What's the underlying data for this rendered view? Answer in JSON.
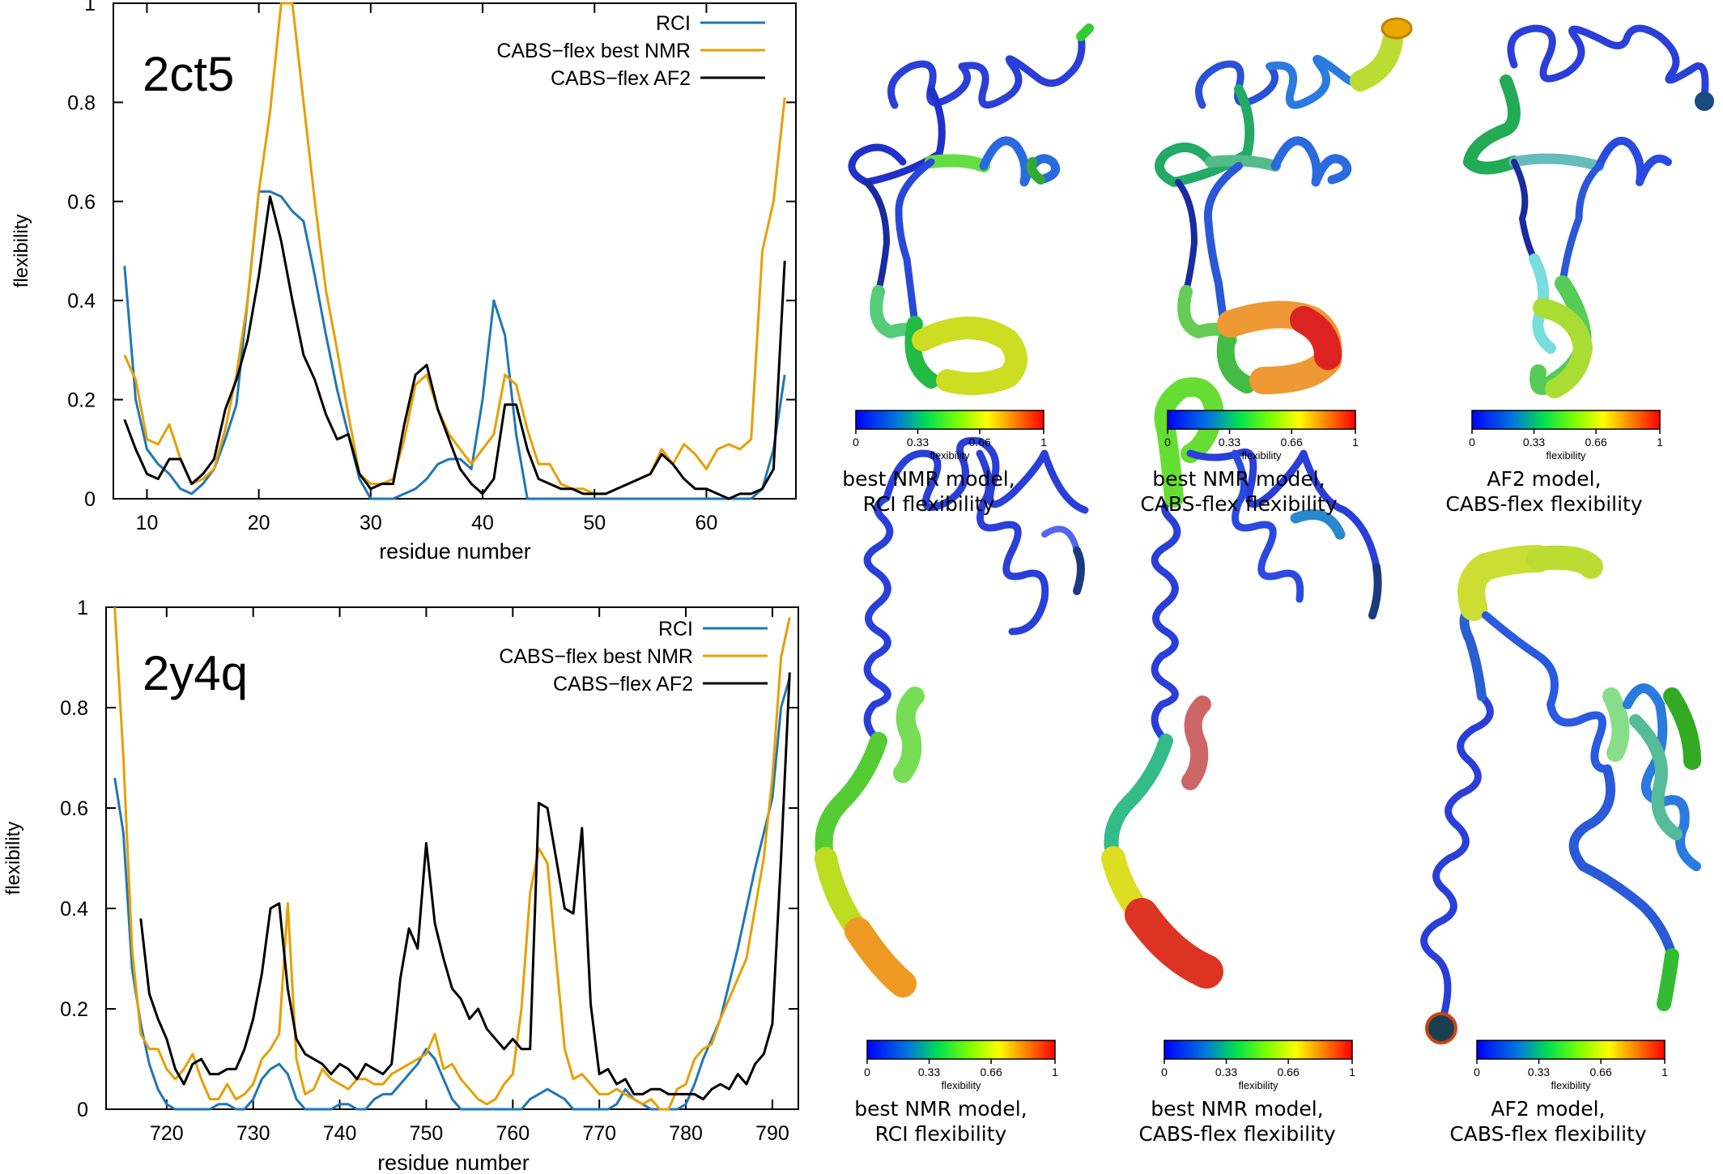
{
  "chart_data": [
    {
      "type": "line",
      "title": "",
      "label": "2ct5",
      "xlabel": "residue number",
      "ylabel": "flexibility",
      "xlim": [
        7,
        68
      ],
      "ylim": [
        0,
        1
      ],
      "xticks": [
        10,
        20,
        30,
        40,
        50,
        60
      ],
      "yticks": [
        0,
        0.2,
        0.4,
        0.6,
        0.8,
        1
      ],
      "ytick_labels": [
        "0",
        "0.2",
        "0.4",
        "0.6",
        "0.8",
        "1"
      ],
      "legend_position": "top-right",
      "series": [
        {
          "name": "RCI",
          "color": "#1f77b4",
          "x": [
            8,
            9,
            10,
            11,
            12,
            13,
            14,
            15,
            16,
            17,
            18,
            19,
            20,
            21,
            22,
            23,
            24,
            25,
            26,
            27,
            28,
            29,
            30,
            31,
            32,
            33,
            34,
            35,
            36,
            37,
            38,
            39,
            40,
            41,
            42,
            43,
            44,
            45,
            46,
            47,
            48,
            49,
            50,
            51,
            52,
            53,
            54,
            55,
            56,
            57,
            58,
            59,
            60,
            61,
            62,
            63,
            64,
            65,
            66,
            67
          ],
          "y": [
            0.47,
            0.2,
            0.1,
            0.07,
            0.05,
            0.02,
            0.01,
            0.03,
            0.06,
            0.12,
            0.19,
            0.4,
            0.62,
            0.62,
            0.61,
            0.58,
            0.56,
            0.45,
            0.33,
            0.22,
            0.13,
            0.04,
            0.0,
            0.0,
            0.0,
            0.01,
            0.02,
            0.04,
            0.07,
            0.08,
            0.08,
            0.06,
            0.2,
            0.4,
            0.33,
            0.13,
            0.0,
            0.0,
            0.0,
            0.0,
            0.0,
            0.0,
            0.0,
            0.0,
            0.0,
            0.0,
            0.0,
            0.0,
            0.0,
            0.0,
            0.0,
            0.0,
            0.0,
            0.0,
            0.0,
            0.0,
            0.0,
            0.02,
            0.1,
            0.25
          ]
        },
        {
          "name": "CABS−flex best NMR",
          "color": "#e69f00",
          "x": [
            8,
            9,
            10,
            11,
            12,
            13,
            14,
            15,
            16,
            17,
            18,
            19,
            20,
            21,
            22,
            23,
            24,
            25,
            26,
            27,
            28,
            29,
            30,
            31,
            32,
            33,
            34,
            35,
            36,
            37,
            38,
            39,
            40,
            41,
            42,
            43,
            44,
            45,
            46,
            47,
            48,
            49,
            50,
            51,
            52,
            53,
            54,
            55,
            56,
            57,
            58,
            59,
            60,
            61,
            62,
            63,
            64,
            65,
            66,
            67
          ],
          "y": [
            0.29,
            0.24,
            0.12,
            0.11,
            0.15,
            0.08,
            0.03,
            0.04,
            0.06,
            0.14,
            0.25,
            0.4,
            0.62,
            0.78,
            1.0,
            1.0,
            0.8,
            0.6,
            0.42,
            0.3,
            0.17,
            0.05,
            0.03,
            0.03,
            0.04,
            0.12,
            0.23,
            0.25,
            0.18,
            0.13,
            0.1,
            0.07,
            0.1,
            0.13,
            0.25,
            0.23,
            0.14,
            0.07,
            0.07,
            0.03,
            0.02,
            0.02,
            0.01,
            0.01,
            0.02,
            0.03,
            0.04,
            0.05,
            0.1,
            0.07,
            0.11,
            0.09,
            0.06,
            0.1,
            0.11,
            0.1,
            0.12,
            0.5,
            0.6,
            0.81
          ]
        },
        {
          "name": "CABS−flex AF2",
          "color": "#000000",
          "x": [
            8,
            9,
            10,
            11,
            12,
            13,
            14,
            15,
            16,
            17,
            18,
            19,
            20,
            21,
            22,
            23,
            24,
            25,
            26,
            27,
            28,
            29,
            30,
            31,
            32,
            33,
            34,
            35,
            36,
            37,
            38,
            39,
            40,
            41,
            42,
            43,
            44,
            45,
            46,
            47,
            48,
            49,
            50,
            51,
            52,
            53,
            54,
            55,
            56,
            57,
            58,
            59,
            60,
            61,
            62,
            63,
            64,
            65,
            66,
            67
          ],
          "y": [
            0.16,
            0.1,
            0.05,
            0.04,
            0.08,
            0.08,
            0.03,
            0.05,
            0.08,
            0.18,
            0.24,
            0.32,
            0.45,
            0.61,
            0.52,
            0.4,
            0.29,
            0.24,
            0.17,
            0.12,
            0.13,
            0.05,
            0.02,
            0.03,
            0.03,
            0.15,
            0.25,
            0.27,
            0.18,
            0.12,
            0.06,
            0.03,
            0.01,
            0.04,
            0.19,
            0.19,
            0.1,
            0.04,
            0.03,
            0.02,
            0.02,
            0.01,
            0.01,
            0.01,
            0.02,
            0.03,
            0.04,
            0.05,
            0.09,
            0.07,
            0.04,
            0.02,
            0.02,
            0.01,
            0.0,
            0.01,
            0.01,
            0.02,
            0.06,
            0.48
          ]
        }
      ]
    },
    {
      "type": "line",
      "title": "",
      "label": "2y4q",
      "xlabel": "residue number",
      "ylabel": "flexibility",
      "xlim": [
        713,
        793
      ],
      "ylim": [
        0,
        1
      ],
      "xticks": [
        720,
        730,
        740,
        750,
        760,
        770,
        780,
        790
      ],
      "yticks": [
        0,
        0.2,
        0.4,
        0.6,
        0.8,
        1
      ],
      "ytick_labels": [
        "0",
        "0.2",
        "0.4",
        "0.6",
        "0.8",
        "1"
      ],
      "legend_position": "top-right",
      "series": [
        {
          "name": "RCI",
          "color": "#1f77b4",
          "x": [
            714,
            715,
            716,
            717,
            718,
            719,
            720,
            721,
            722,
            723,
            724,
            725,
            726,
            727,
            728,
            729,
            730,
            731,
            732,
            733,
            734,
            735,
            736,
            737,
            738,
            739,
            740,
            741,
            742,
            743,
            744,
            745,
            746,
            747,
            748,
            749,
            750,
            751,
            752,
            753,
            754,
            755,
            756,
            757,
            758,
            759,
            760,
            761,
            762,
            763,
            764,
            765,
            766,
            767,
            768,
            769,
            770,
            771,
            772,
            773,
            774,
            775,
            776,
            777,
            778,
            779,
            780,
            781,
            782,
            783,
            784,
            785,
            786,
            787,
            788,
            789,
            790,
            791,
            792
          ],
          "y": [
            0.66,
            0.55,
            0.28,
            0.17,
            0.09,
            0.04,
            0.01,
            0.0,
            0.0,
            0.0,
            0.0,
            0.0,
            0.01,
            0.01,
            0.0,
            0.0,
            0.02,
            0.06,
            0.08,
            0.09,
            0.07,
            0.02,
            0.0,
            0.0,
            0.0,
            0.0,
            0.01,
            0.01,
            0.0,
            0.0,
            0.02,
            0.03,
            0.03,
            0.05,
            0.07,
            0.09,
            0.12,
            0.1,
            0.06,
            0.02,
            0.0,
            0.0,
            0.0,
            0.0,
            0.0,
            0.0,
            0.0,
            0.0,
            0.02,
            0.03,
            0.04,
            0.03,
            0.02,
            0.0,
            0.0,
            0.0,
            0.0,
            0.0,
            0.01,
            0.04,
            0.02,
            0.01,
            0.0,
            0.0,
            0.0,
            0.0,
            0.01,
            0.05,
            0.1,
            0.14,
            0.18,
            0.25,
            0.32,
            0.4,
            0.48,
            0.55,
            0.62,
            0.8,
            0.86
          ]
        },
        {
          "name": "CABS−flex best NMR",
          "color": "#e69f00",
          "x": [
            714,
            715,
            716,
            717,
            718,
            719,
            720,
            721,
            722,
            723,
            724,
            725,
            726,
            727,
            728,
            729,
            730,
            731,
            732,
            733,
            734,
            735,
            736,
            737,
            738,
            739,
            740,
            741,
            742,
            743,
            744,
            745,
            746,
            747,
            748,
            749,
            750,
            751,
            752,
            753,
            754,
            755,
            756,
            757,
            758,
            759,
            760,
            761,
            762,
            763,
            764,
            765,
            766,
            767,
            768,
            769,
            770,
            771,
            772,
            773,
            774,
            775,
            776,
            777,
            778,
            779,
            780,
            781,
            782,
            783,
            784,
            785,
            786,
            787,
            788,
            789,
            790,
            791,
            792
          ],
          "y": [
            1.0,
            0.7,
            0.32,
            0.15,
            0.12,
            0.12,
            0.08,
            0.06,
            0.08,
            0.11,
            0.06,
            0.02,
            0.02,
            0.05,
            0.02,
            0.03,
            0.05,
            0.1,
            0.12,
            0.15,
            0.41,
            0.1,
            0.03,
            0.04,
            0.08,
            0.06,
            0.05,
            0.04,
            0.06,
            0.06,
            0.05,
            0.05,
            0.07,
            0.08,
            0.09,
            0.1,
            0.11,
            0.15,
            0.08,
            0.09,
            0.06,
            0.04,
            0.02,
            0.01,
            0.02,
            0.05,
            0.07,
            0.2,
            0.43,
            0.52,
            0.49,
            0.3,
            0.12,
            0.06,
            0.07,
            0.05,
            0.03,
            0.03,
            0.04,
            0.03,
            0.02,
            0.01,
            0.02,
            0.0,
            0.0,
            0.04,
            0.05,
            0.1,
            0.12,
            0.13,
            0.18,
            0.22,
            0.26,
            0.3,
            0.4,
            0.5,
            0.66,
            0.9,
            0.98
          ]
        },
        {
          "name": "CABS−flex AF2",
          "color": "#000000",
          "x": [
            717,
            718,
            719,
            720,
            721,
            722,
            723,
            724,
            725,
            726,
            727,
            728,
            729,
            730,
            731,
            732,
            733,
            734,
            735,
            736,
            737,
            738,
            739,
            740,
            741,
            742,
            743,
            744,
            745,
            746,
            747,
            748,
            749,
            750,
            751,
            752,
            753,
            754,
            755,
            756,
            757,
            758,
            759,
            760,
            761,
            762,
            763,
            764,
            765,
            766,
            767,
            768,
            769,
            770,
            771,
            772,
            773,
            774,
            775,
            776,
            777,
            778,
            779,
            780,
            781,
            782,
            783,
            784,
            785,
            786,
            787,
            788,
            789,
            790,
            791,
            792
          ],
          "y": [
            0.38,
            0.23,
            0.18,
            0.14,
            0.08,
            0.05,
            0.09,
            0.1,
            0.07,
            0.07,
            0.08,
            0.08,
            0.12,
            0.18,
            0.27,
            0.4,
            0.41,
            0.24,
            0.14,
            0.11,
            0.1,
            0.09,
            0.07,
            0.09,
            0.08,
            0.06,
            0.09,
            0.08,
            0.07,
            0.09,
            0.26,
            0.36,
            0.32,
            0.53,
            0.37,
            0.3,
            0.24,
            0.22,
            0.18,
            0.2,
            0.16,
            0.14,
            0.12,
            0.14,
            0.12,
            0.12,
            0.61,
            0.6,
            0.5,
            0.4,
            0.39,
            0.56,
            0.21,
            0.07,
            0.08,
            0.05,
            0.06,
            0.03,
            0.03,
            0.04,
            0.04,
            0.03,
            0.03,
            0.03,
            0.03,
            0.02,
            0.04,
            0.05,
            0.04,
            0.07,
            0.05,
            0.09,
            0.11,
            0.17,
            0.5,
            0.87
          ]
        }
      ]
    }
  ],
  "structures": {
    "colorbar": {
      "tick_labels": [
        "0",
        "0.33",
        "0.66",
        "1"
      ],
      "label": "flexibility",
      "gradient": [
        "#0000ff",
        "#00a0c8",
        "#00ff00",
        "#ffff00",
        "#ff0000"
      ]
    },
    "rows": [
      {
        "panels": [
          {
            "caption_line1": "best NMR model,",
            "caption_line2": "RCI flexibility"
          },
          {
            "caption_line1": "best NMR model,",
            "caption_line2": "CABS-flex flexibility"
          },
          {
            "caption_line1": "AF2 model,",
            "caption_line2": "CABS-flex flexibility"
          }
        ]
      },
      {
        "panels": [
          {
            "caption_line1": "best NMR model,",
            "caption_line2": "RCI flexibility"
          },
          {
            "caption_line1": "best NMR model,",
            "caption_line2": "CABS-flex flexibility"
          },
          {
            "caption_line1": "AF2 model,",
            "caption_line2": "CABS-flex flexibility"
          }
        ]
      }
    ]
  }
}
